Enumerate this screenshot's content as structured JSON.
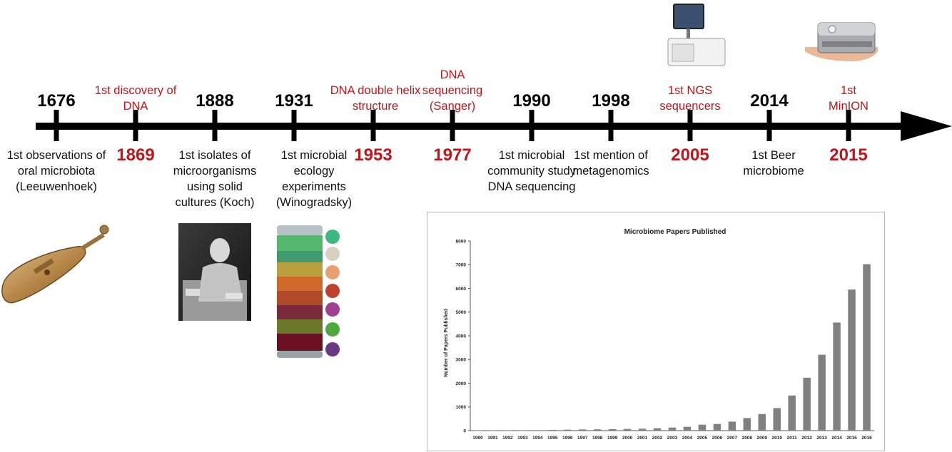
{
  "timeline": {
    "top_years": [
      "1676",
      "1888",
      "1931",
      "1990",
      "1998",
      "2014"
    ],
    "top_events": [
      "1st discovery of DNA",
      "DNA double helix structure",
      "DNA sequencing (Sanger)",
      "1st  NGS sequencers",
      "1st MinION"
    ],
    "bottom_years": [
      "1869",
      "1953",
      "1977",
      "2005",
      "2015"
    ],
    "bottom_events": [
      "1st observations of oral microbiota (Leeuwenhoek)",
      "1st isolates of microorganisms using solid cultures (Koch)",
      "1st microbial ecology experiments (Winogradsky)",
      "1st microbial community study DNA sequencing",
      "1st mention of metagenomics",
      "1st Beer microbiome"
    ]
  },
  "images": {
    "microscope": "leeuwenhoek-microscope",
    "portrait": "koch-portrait-photo",
    "column": "winogradsky-column",
    "ngs": "ngs-sequencer",
    "minion": "minion-device-in-hand"
  },
  "colors": {
    "red": "#c0151a",
    "black": "#000000",
    "bar": "#808080"
  },
  "chart_data": {
    "type": "bar",
    "title": "Microbiome Papers Published",
    "ylabel": "Number of Papers Published",
    "xlabel": "",
    "ylim": [
      0,
      8000
    ],
    "yticks": [
      0,
      1000,
      2000,
      3000,
      4000,
      5000,
      6000,
      7000,
      8000
    ],
    "categories": [
      "1990",
      "1991",
      "1992",
      "1993",
      "1994",
      "1995",
      "1996",
      "1997",
      "1998",
      "1999",
      "2000",
      "2001",
      "2002",
      "2003",
      "2004",
      "2005",
      "2006",
      "2007",
      "2008",
      "2009",
      "2010",
      "2011",
      "2012",
      "2013",
      "2014",
      "2015",
      "2016"
    ],
    "values": [
      5,
      10,
      10,
      10,
      20,
      30,
      40,
      50,
      55,
      60,
      70,
      80,
      100,
      130,
      160,
      250,
      280,
      380,
      530,
      700,
      950,
      1480,
      2230,
      3200,
      4560,
      5950,
      7020
    ]
  }
}
